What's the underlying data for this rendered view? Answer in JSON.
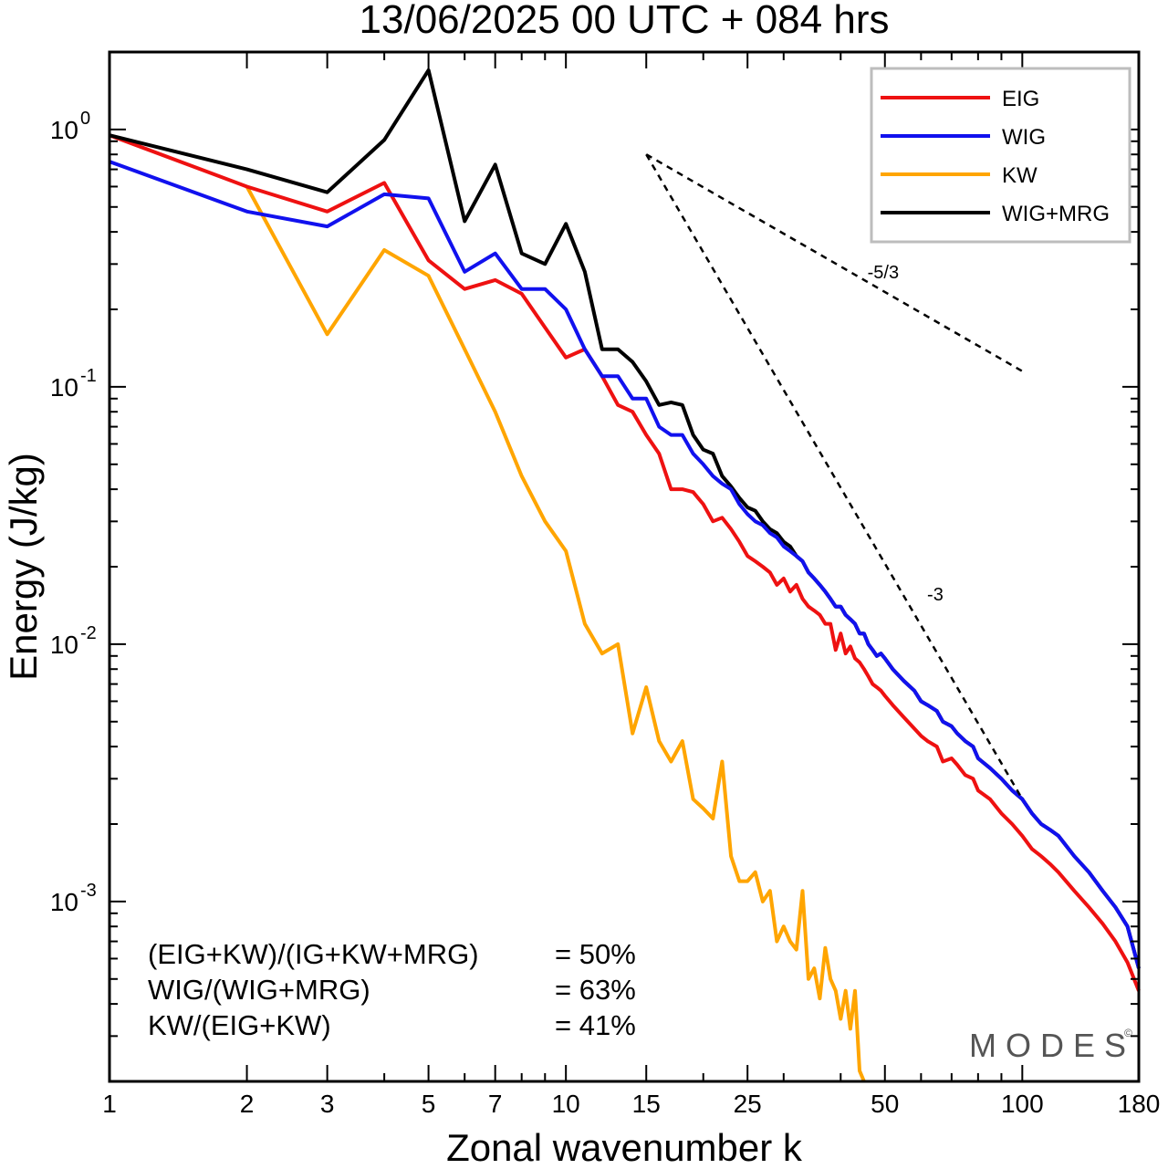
{
  "title": "13/06/2025  00 UTC  + 084 hrs",
  "chart_data": {
    "type": "line",
    "xscale": "log",
    "yscale": "log",
    "xlabel": "Zonal wavenumber k",
    "ylabel": "Energy (J/kg)",
    "xlim": [
      1,
      180
    ],
    "ylim": [
      0.0002,
      2.0
    ],
    "x_ticks": [
      1,
      2,
      3,
      5,
      7,
      10,
      15,
      25,
      50,
      100,
      180
    ],
    "x_tick_labels": [
      "1",
      "2",
      "3",
      "5",
      "7",
      "10",
      "15",
      "25",
      "50",
      "100",
      "180"
    ],
    "y_ticks": [
      1,
      0.1,
      0.01,
      0.001
    ],
    "y_tick_labels": [
      {
        "base": "10",
        "exp": "0"
      },
      {
        "base": "10",
        "exp": "-1"
      },
      {
        "base": "10",
        "exp": "-2"
      },
      {
        "base": "10",
        "exp": "-3"
      }
    ],
    "grid": false,
    "legend_position": "top-right",
    "series": [
      {
        "name": "EIG",
        "color": "#ee1111",
        "points": [
          [
            1,
            0.95
          ],
          [
            2,
            0.6
          ],
          [
            3,
            0.48
          ],
          [
            4,
            0.62
          ],
          [
            5,
            0.31
          ],
          [
            6,
            0.24
          ],
          [
            7,
            0.26
          ],
          [
            8,
            0.23
          ],
          [
            9,
            0.17
          ],
          [
            10,
            0.13
          ],
          [
            11,
            0.14
          ],
          [
            12,
            0.11
          ],
          [
            13,
            0.085
          ],
          [
            14,
            0.08
          ],
          [
            15,
            0.065
          ],
          [
            16,
            0.055
          ],
          [
            17,
            0.04
          ],
          [
            18,
            0.04
          ],
          [
            19,
            0.039
          ],
          [
            20,
            0.035
          ],
          [
            21,
            0.03
          ],
          [
            22,
            0.031
          ],
          [
            23,
            0.028
          ],
          [
            24,
            0.025
          ],
          [
            25,
            0.022
          ],
          [
            26,
            0.021
          ],
          [
            27,
            0.02
          ],
          [
            28,
            0.019
          ],
          [
            29,
            0.017
          ],
          [
            30,
            0.018
          ],
          [
            31,
            0.016
          ],
          [
            32,
            0.017
          ],
          [
            33,
            0.015
          ],
          [
            34,
            0.014
          ],
          [
            35,
            0.0135
          ],
          [
            36,
            0.013
          ],
          [
            37,
            0.012
          ],
          [
            38,
            0.012
          ],
          [
            39,
            0.0095
          ],
          [
            40,
            0.011
          ],
          [
            41,
            0.0092
          ],
          [
            42,
            0.0098
          ],
          [
            43,
            0.0088
          ],
          [
            44,
            0.0085
          ],
          [
            45,
            0.008
          ],
          [
            46,
            0.0075
          ],
          [
            47,
            0.007
          ],
          [
            48,
            0.0068
          ],
          [
            49,
            0.0066
          ],
          [
            50,
            0.0063
          ],
          [
            52,
            0.0058
          ],
          [
            55,
            0.0052
          ],
          [
            58,
            0.0047
          ],
          [
            60,
            0.0044
          ],
          [
            62,
            0.0042
          ],
          [
            65,
            0.004
          ],
          [
            67,
            0.0035
          ],
          [
            70,
            0.0036
          ],
          [
            72,
            0.0034
          ],
          [
            75,
            0.0031
          ],
          [
            78,
            0.003
          ],
          [
            80,
            0.0027
          ],
          [
            85,
            0.0025
          ],
          [
            90,
            0.0022
          ],
          [
            95,
            0.002
          ],
          [
            100,
            0.0018
          ],
          [
            105,
            0.0016
          ],
          [
            110,
            0.0015
          ],
          [
            115,
            0.0014
          ],
          [
            120,
            0.0013
          ],
          [
            130,
            0.0011
          ],
          [
            140,
            0.00095
          ],
          [
            150,
            0.00082
          ],
          [
            160,
            0.0007
          ],
          [
            170,
            0.00058
          ],
          [
            180,
            0.00045
          ]
        ]
      },
      {
        "name": "WIG",
        "color": "#1111ee",
        "points": [
          [
            1,
            0.75
          ],
          [
            2,
            0.48
          ],
          [
            3,
            0.42
          ],
          [
            4,
            0.56
          ],
          [
            5,
            0.54
          ],
          [
            6,
            0.28
          ],
          [
            7,
            0.33
          ],
          [
            8,
            0.24
          ],
          [
            9,
            0.24
          ],
          [
            10,
            0.2
          ],
          [
            11,
            0.14
          ],
          [
            12,
            0.11
          ],
          [
            13,
            0.11
          ],
          [
            14,
            0.09
          ],
          [
            15,
            0.09
          ],
          [
            16,
            0.07
          ],
          [
            17,
            0.065
          ],
          [
            18,
            0.065
          ],
          [
            19,
            0.055
          ],
          [
            20,
            0.05
          ],
          [
            21,
            0.045
          ],
          [
            22,
            0.042
          ],
          [
            23,
            0.04
          ],
          [
            24,
            0.035
          ],
          [
            25,
            0.032
          ],
          [
            26,
            0.03
          ],
          [
            27,
            0.029
          ],
          [
            28,
            0.027
          ],
          [
            29,
            0.026
          ],
          [
            30,
            0.024
          ],
          [
            31,
            0.023
          ],
          [
            32,
            0.022
          ],
          [
            33,
            0.021
          ],
          [
            34,
            0.019
          ],
          [
            35,
            0.018
          ],
          [
            36,
            0.017
          ],
          [
            37,
            0.016
          ],
          [
            38,
            0.015
          ],
          [
            39,
            0.014
          ],
          [
            40,
            0.014
          ],
          [
            41,
            0.013
          ],
          [
            42,
            0.0125
          ],
          [
            43,
            0.012
          ],
          [
            44,
            0.011
          ],
          [
            45,
            0.011
          ],
          [
            46,
            0.01
          ],
          [
            47,
            0.0095
          ],
          [
            48,
            0.009
          ],
          [
            49,
            0.0092
          ],
          [
            50,
            0.0088
          ],
          [
            52,
            0.008
          ],
          [
            55,
            0.0072
          ],
          [
            58,
            0.0066
          ],
          [
            60,
            0.006
          ],
          [
            62,
            0.0058
          ],
          [
            65,
            0.0055
          ],
          [
            67,
            0.005
          ],
          [
            70,
            0.0048
          ],
          [
            72,
            0.0045
          ],
          [
            75,
            0.0042
          ],
          [
            78,
            0.004
          ],
          [
            80,
            0.0036
          ],
          [
            85,
            0.0033
          ],
          [
            90,
            0.003
          ],
          [
            95,
            0.0027
          ],
          [
            100,
            0.0025
          ],
          [
            105,
            0.0022
          ],
          [
            110,
            0.002
          ],
          [
            115,
            0.0019
          ],
          [
            120,
            0.0018
          ],
          [
            130,
            0.0015
          ],
          [
            140,
            0.0013
          ],
          [
            150,
            0.0011
          ],
          [
            160,
            0.00095
          ],
          [
            170,
            0.0008
          ],
          [
            180,
            0.00055
          ]
        ]
      },
      {
        "name": "KW",
        "color": "#ffa500",
        "points": [
          [
            2,
            0.6
          ],
          [
            3,
            0.16
          ],
          [
            4,
            0.34
          ],
          [
            5,
            0.27
          ],
          [
            6,
            0.14
          ],
          [
            7,
            0.08
          ],
          [
            8,
            0.045
          ],
          [
            9,
            0.03
          ],
          [
            10,
            0.023
          ],
          [
            11,
            0.012
          ],
          [
            12,
            0.0092
          ],
          [
            13,
            0.01
          ],
          [
            14,
            0.0045
          ],
          [
            15,
            0.0068
          ],
          [
            16,
            0.0042
          ],
          [
            17,
            0.0035
          ],
          [
            18,
            0.0042
          ],
          [
            19,
            0.0025
          ],
          [
            20,
            0.0023
          ],
          [
            21,
            0.0021
          ],
          [
            22,
            0.0035
          ],
          [
            23,
            0.0015
          ],
          [
            24,
            0.0012
          ],
          [
            25,
            0.0012
          ],
          [
            26,
            0.0013
          ],
          [
            27,
            0.001
          ],
          [
            28,
            0.0011
          ],
          [
            29,
            0.0007
          ],
          [
            30,
            0.0008
          ],
          [
            31,
            0.0007
          ],
          [
            32,
            0.00065
          ],
          [
            33,
            0.0011
          ],
          [
            34,
            0.0005
          ],
          [
            35,
            0.00055
          ],
          [
            36,
            0.00042
          ],
          [
            37,
            0.00066
          ],
          [
            38,
            0.0005
          ],
          [
            39,
            0.00045
          ],
          [
            40,
            0.00035
          ],
          [
            41,
            0.00045
          ],
          [
            42,
            0.00032
          ],
          [
            43,
            0.00045
          ],
          [
            44,
            0.00022
          ],
          [
            45,
            0.0002
          ]
        ]
      },
      {
        "name": "WIG+MRG",
        "color": "#000000",
        "points": [
          [
            1,
            0.95
          ],
          [
            2,
            0.7
          ],
          [
            3,
            0.57
          ],
          [
            4,
            0.91
          ],
          [
            5,
            1.7
          ],
          [
            6,
            0.44
          ],
          [
            7,
            0.73
          ],
          [
            8,
            0.33
          ],
          [
            9,
            0.3
          ],
          [
            10,
            0.43
          ],
          [
            11,
            0.28
          ],
          [
            12,
            0.14
          ],
          [
            13,
            0.14
          ],
          [
            14,
            0.125
          ],
          [
            15,
            0.105
          ],
          [
            16,
            0.085
          ],
          [
            17,
            0.087
          ],
          [
            18,
            0.085
          ],
          [
            19,
            0.065
          ],
          [
            20,
            0.057
          ],
          [
            21,
            0.055
          ],
          [
            22,
            0.045
          ],
          [
            23,
            0.041
          ],
          [
            24,
            0.037
          ],
          [
            25,
            0.034
          ],
          [
            26,
            0.033
          ],
          [
            27,
            0.03
          ],
          [
            28,
            0.028
          ],
          [
            29,
            0.027
          ],
          [
            30,
            0.025
          ],
          [
            31,
            0.024
          ],
          [
            32,
            0.022
          ],
          [
            33,
            0.021
          ],
          [
            34,
            0.019
          ],
          [
            35,
            0.018
          ],
          [
            36,
            0.017
          ],
          [
            37,
            0.016
          ],
          [
            38,
            0.015
          ],
          [
            39,
            0.014
          ],
          [
            40,
            0.014
          ],
          [
            41,
            0.013
          ],
          [
            42,
            0.0125
          ],
          [
            43,
            0.012
          ],
          [
            44,
            0.011
          ],
          [
            45,
            0.011
          ],
          [
            46,
            0.01
          ],
          [
            47,
            0.0095
          ],
          [
            48,
            0.009
          ],
          [
            49,
            0.0092
          ],
          [
            50,
            0.0088
          ],
          [
            52,
            0.008
          ],
          [
            55,
            0.0072
          ],
          [
            58,
            0.0066
          ],
          [
            60,
            0.006
          ],
          [
            62,
            0.0058
          ],
          [
            65,
            0.0055
          ],
          [
            67,
            0.005
          ],
          [
            70,
            0.0048
          ],
          [
            72,
            0.0045
          ],
          [
            75,
            0.0042
          ],
          [
            78,
            0.004
          ],
          [
            80,
            0.0036
          ],
          [
            85,
            0.0033
          ],
          [
            90,
            0.003
          ],
          [
            95,
            0.0027
          ],
          [
            100,
            0.0025
          ],
          [
            105,
            0.0022
          ],
          [
            110,
            0.002
          ],
          [
            115,
            0.0019
          ],
          [
            120,
            0.0018
          ],
          [
            130,
            0.0015
          ],
          [
            140,
            0.0013
          ],
          [
            150,
            0.0011
          ],
          [
            160,
            0.00095
          ],
          [
            170,
            0.0008
          ],
          [
            180,
            0.00055
          ]
        ]
      }
    ],
    "reference_lines": [
      {
        "label": "-5/3",
        "points": [
          [
            15,
            0.8
          ],
          [
            100,
            0.115
          ]
        ]
      },
      {
        "label": "-3",
        "points": [
          [
            15,
            0.8
          ],
          [
            100,
            0.0025
          ]
        ]
      }
    ],
    "annotations": [
      {
        "text": "(EIG+KW)/(IG+KW+MRG)",
        "value": "= 50%"
      },
      {
        "text": "WIG/(WIG+MRG)",
        "value": "= 63%"
      },
      {
        "text": "KW/(EIG+KW)",
        "value": "= 41%"
      }
    ]
  },
  "brand": "MODES",
  "brand_mark": "©"
}
